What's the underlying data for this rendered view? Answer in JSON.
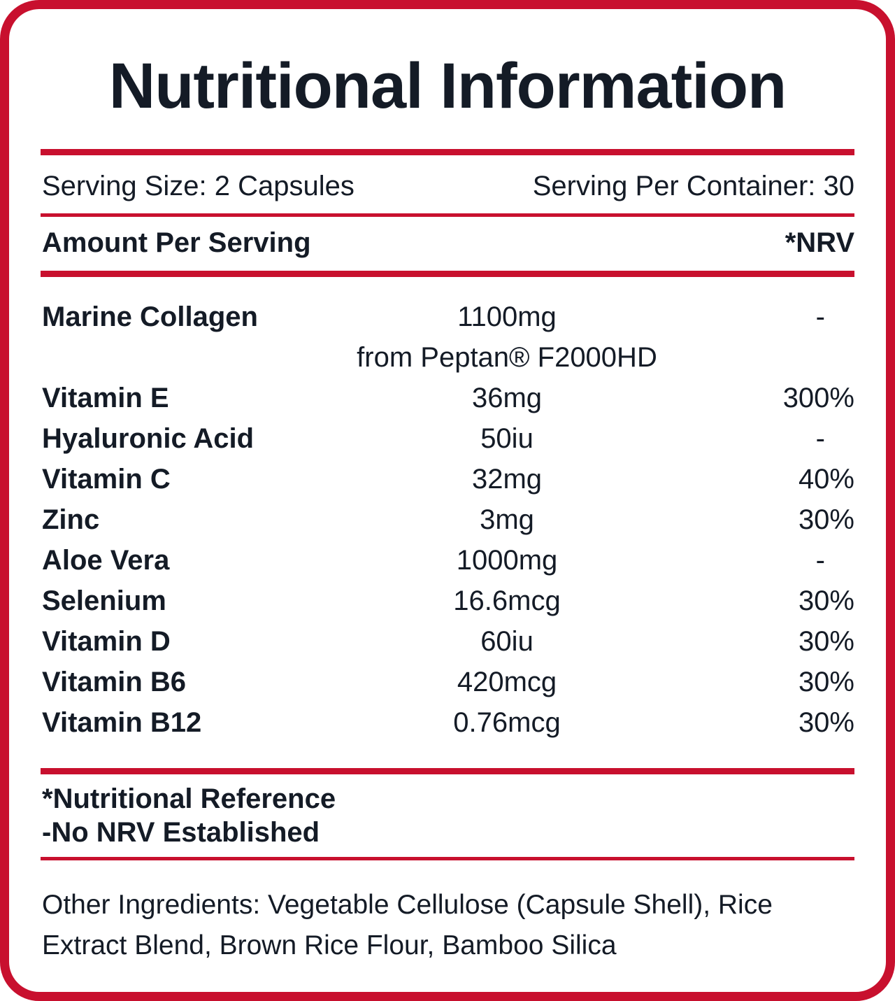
{
  "title": "Nutritional Information",
  "serving": {
    "size": "Serving Size: 2 Capsules",
    "per_container": "Serving Per Container: 30"
  },
  "header": {
    "amount_label": "Amount Per Serving",
    "nrv_label": "*NRV"
  },
  "nutrients": [
    {
      "name": "Marine Collagen",
      "amount": "1100mg",
      "nrv": "-",
      "sub": "from Peptan® F2000HD"
    },
    {
      "name": "Vitamin E",
      "amount": "36mg",
      "nrv": "300%"
    },
    {
      "name": "Hyaluronic Acid",
      "amount": "50iu",
      "nrv": "-"
    },
    {
      "name": "Vitamin C",
      "amount": "32mg",
      "nrv": "40%"
    },
    {
      "name": "Zinc",
      "amount": "3mg",
      "nrv": "30%"
    },
    {
      "name": "Aloe Vera",
      "amount": "1000mg",
      "nrv": "-"
    },
    {
      "name": "Selenium",
      "amount": "16.6mcg",
      "nrv": "30%"
    },
    {
      "name": "Vitamin D",
      "amount": "60iu",
      "nrv": "30%"
    },
    {
      "name": "Vitamin B6",
      "amount": "420mcg",
      "nrv": "30%"
    },
    {
      "name": "Vitamin B12",
      "amount": "0.76mcg",
      "nrv": "30%"
    }
  ],
  "footnotes": {
    "nrv_note": "*Nutritional Reference",
    "dash_note": "-No NRV Established"
  },
  "other_ingredients": "Other Ingredients: Vegetable Cellulose (Capsule Shell), Rice Extract Blend, Brown Rice Flour, Bamboo Silica",
  "colors": {
    "accent": "#c8102e",
    "text": "#141b26",
    "background": "#ffffff"
  }
}
